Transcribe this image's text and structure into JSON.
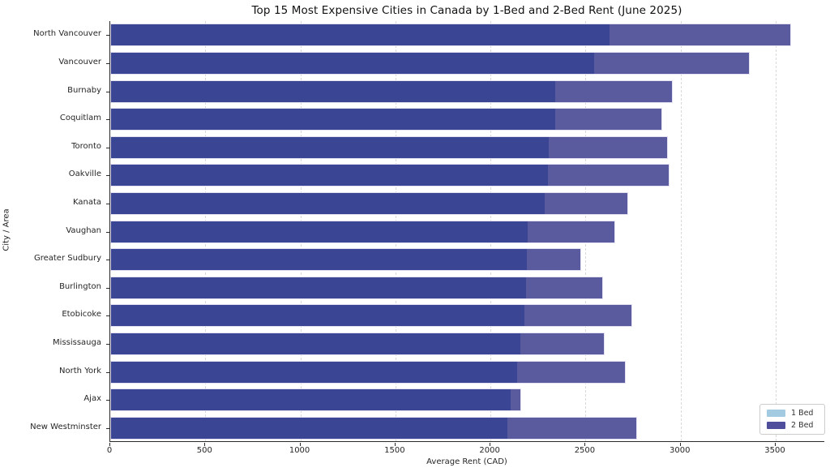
{
  "title": "Top 15 Most Expensive Cities in Canada by 1-Bed and 2-Bed Rent (June 2025)",
  "chart_data": {
    "type": "bar",
    "orientation": "horizontal",
    "title": "Top 15 Most Expensive Cities in Canada by 1-Bed and 2-Bed Rent (June 2025)",
    "xlabel": "Average Rent (CAD)",
    "ylabel": "City / Area",
    "categories": [
      "North Vancouver",
      "Vancouver",
      "Burnaby",
      "Coquitlam",
      "Toronto",
      "Oakville",
      "Kanata",
      "Vaughan",
      "Greater Sudbury",
      "Burlington",
      "Etobicoke",
      "Mississauga",
      "North York",
      "Ajax",
      "New Westminster"
    ],
    "series": [
      {
        "name": "1 Bed",
        "color": "#a2cbe2",
        "values": [
          2625,
          2545,
          2340,
          2340,
          2305,
          2300,
          2285,
          2195,
          2190,
          2185,
          2180,
          2155,
          2140,
          2105,
          2090
        ]
      },
      {
        "name": "2 Bed",
        "color": "#4e4e9d",
        "values": [
          3580,
          3365,
          2960,
          2905,
          2935,
          2940,
          2725,
          2655,
          2475,
          2590,
          2745,
          2600,
          2710,
          2160,
          2770
        ]
      }
    ],
    "rendered_colors": {
      "overlap_segment": "#3a4593",
      "two_bed_only_segment": "#5a5a9e",
      "bar_edge": "#e3e1f2"
    },
    "xlim": [
      0,
      3760
    ],
    "xticks": [
      0,
      500,
      1000,
      1500,
      2000,
      2500,
      3000,
      3500
    ],
    "grid": "vertical-dashed",
    "legend_position": "lower-right",
    "legend": {
      "items": [
        {
          "label": "1 Bed",
          "color": "#a2cbe2"
        },
        {
          "label": "2 Bed",
          "color": "#4e4e9d"
        }
      ]
    }
  }
}
